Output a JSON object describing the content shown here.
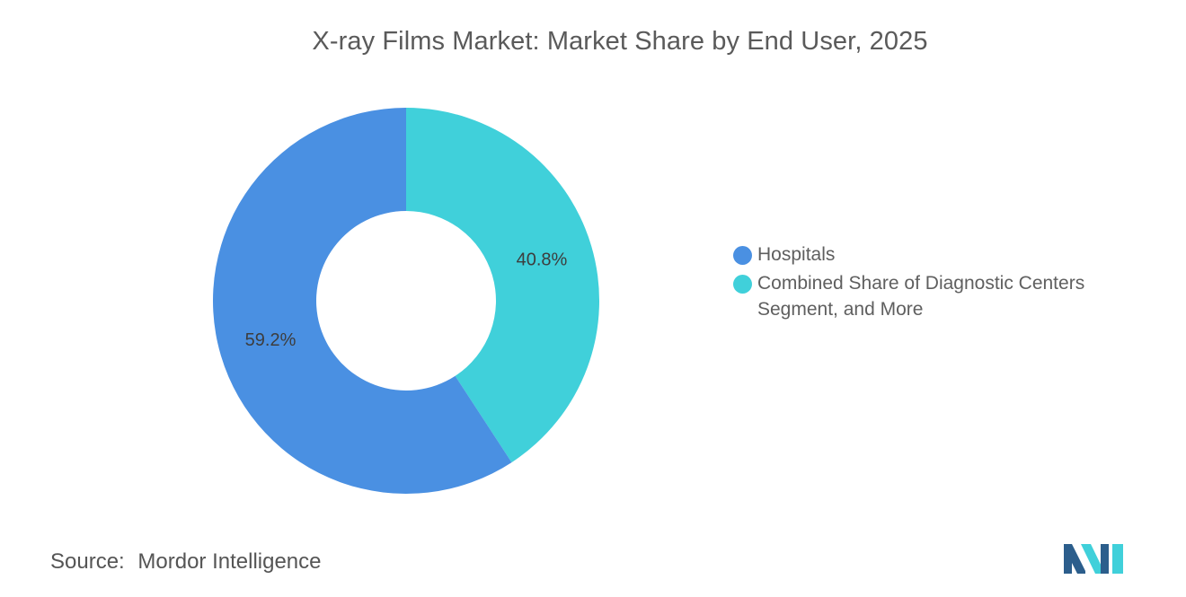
{
  "title": "X-ray Films Market: Market Share by End User, 2025",
  "chart_data": {
    "type": "pie",
    "style": "donut",
    "title": "X-ray Films Market: Market Share by End User, 2025",
    "slices": [
      {
        "name": "Combined Share of Diagnostic Centers Segment, and More",
        "value": 40.8,
        "label": "40.8%",
        "color": "#40D0DA"
      },
      {
        "name": "Hospitals",
        "value": 59.2,
        "label": "59.2%",
        "color": "#4A90E2"
      }
    ],
    "legend_placement": "right"
  },
  "legend": {
    "items": [
      {
        "label": "Hospitals",
        "color": "#4A90E2"
      },
      {
        "label": "Combined Share of Diagnostic Centers Segment, and More",
        "color": "#40D0DA"
      }
    ]
  },
  "source": {
    "label": "Source:",
    "value": "Mordor Intelligence"
  },
  "logo": {
    "icon": "mordor-intelligence-logo-icon",
    "colors": [
      "#2C5E8C",
      "#40D0DA"
    ]
  }
}
